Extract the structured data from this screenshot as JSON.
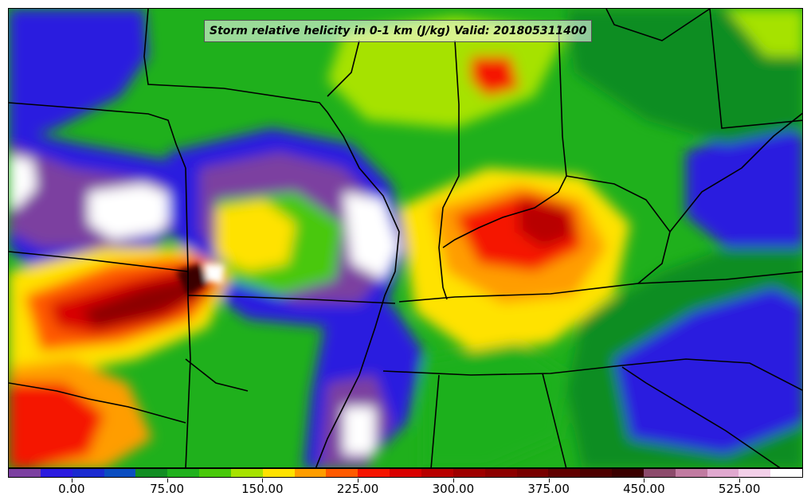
{
  "title": "Storm relative helicity in 0-1 km (J/kg) Valid: 201805311400",
  "colors": {
    "outside": "#ffffff",
    "border_lines": "#000000"
  },
  "colorbar": {
    "colors": [
      "#7b3fa0",
      "#2a1adf",
      "#1a2ad0",
      "#0a4dc0",
      "#118d22",
      "#1fb01c",
      "#48c80a",
      "#a6e200",
      "#ffe200",
      "#ff9d00",
      "#ff5a00",
      "#f51400",
      "#d80000",
      "#b80000",
      "#9e0000",
      "#8c0000",
      "#780000",
      "#600000",
      "#4d0000",
      "#3a0000",
      "#8c4a6b",
      "#c07aa0",
      "#e0a8cf",
      "#f2cfe8",
      "#ffffff"
    ],
    "tick_labels": [
      "0.00",
      "75.00",
      "150.00",
      "225.00",
      "300.00",
      "375.00",
      "450.00",
      "525.00"
    ],
    "tick_values": [
      0,
      75,
      150,
      225,
      300,
      375,
      450,
      525
    ],
    "range": [
      -50,
      575
    ]
  }
}
